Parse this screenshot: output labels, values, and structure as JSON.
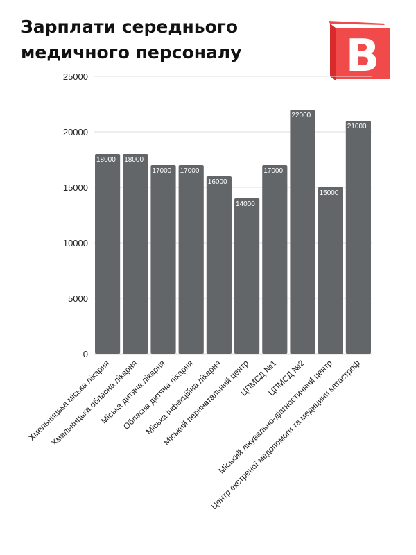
{
  "header": {
    "title_line1": "Зарплати середнього",
    "title_line2": "медичного персоналу",
    "logo_letter": "B"
  },
  "colors": {
    "bar": "#626669",
    "grid": "#dddddd",
    "logo_red": "#f04a4a",
    "logo_dark": "#d92b2b"
  },
  "chart_data": {
    "type": "bar",
    "title": "Зарплати середнього медичного персоналу",
    "xlabel": "",
    "ylabel": "",
    "ylim": [
      0,
      25000
    ],
    "yticks": [
      0,
      5000,
      10000,
      15000,
      20000,
      25000
    ],
    "grid": true,
    "categories": [
      "Хмельницька міська лікарня",
      "Хмельницька обласна лікарня",
      "Міська дитяча лікарня",
      "Обласна дитяча лікарня",
      "Міська інфекційна лікарня",
      "Міський перинатальний центр",
      "ЦПМСД №1",
      "ЦПМСД №2",
      "Міський лікувально-діагностичний центр",
      "Центр екстреної медопомоги та медицини катастроф"
    ],
    "values": [
      18000,
      18000,
      17000,
      17000,
      16000,
      14000,
      17000,
      22000,
      15000,
      21000
    ]
  }
}
